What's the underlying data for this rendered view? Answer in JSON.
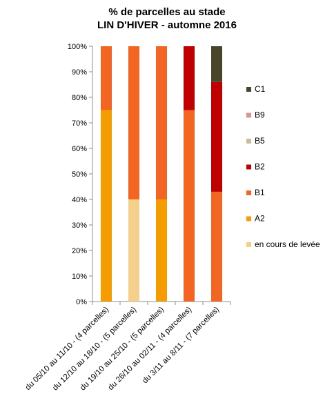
{
  "chart_data": {
    "type": "bar",
    "stacked": true,
    "title_lines": [
      "% de parcelles au stade",
      "LIN D'HIVER - automne 2016"
    ],
    "xlabel": "",
    "ylabel": "",
    "ylim": [
      0,
      100
    ],
    "y_ticks": [
      "0%",
      "10%",
      "20%",
      "30%",
      "40%",
      "50%",
      "60%",
      "70%",
      "80%",
      "90%",
      "100%"
    ],
    "grid": false,
    "legend_position": "right",
    "categories": [
      "du 05/10 au 11/10 - (4 parcelles)",
      "du 12/10 au 18/10 - (5 parcelles)",
      "du 19/10 au 25/10 - (5 parcelles)",
      "du 26/10 au 02/11 - (4 parcelles)",
      "du 3/11 au 8/11 - (7 parcelles)"
    ],
    "series": [
      {
        "name": "en cours de levée",
        "color": "#F5D08C",
        "values": [
          0,
          40,
          0,
          0,
          0
        ]
      },
      {
        "name": "A2",
        "color": "#F59C00",
        "values": [
          75,
          0,
          40,
          0,
          0
        ]
      },
      {
        "name": "B1",
        "color": "#F26522",
        "values": [
          25,
          60,
          60,
          75,
          43
        ]
      },
      {
        "name": "B2",
        "color": "#C00000",
        "values": [
          0,
          0,
          0,
          25,
          43
        ]
      },
      {
        "name": "B5",
        "color": "#C4BD97",
        "values": [
          0,
          0,
          0,
          0,
          0
        ]
      },
      {
        "name": "B9",
        "color": "#D99594",
        "values": [
          0,
          0,
          0,
          0,
          0
        ]
      },
      {
        "name": "C1",
        "color": "#4A452A",
        "values": [
          0,
          0,
          0,
          0,
          14
        ]
      }
    ]
  }
}
